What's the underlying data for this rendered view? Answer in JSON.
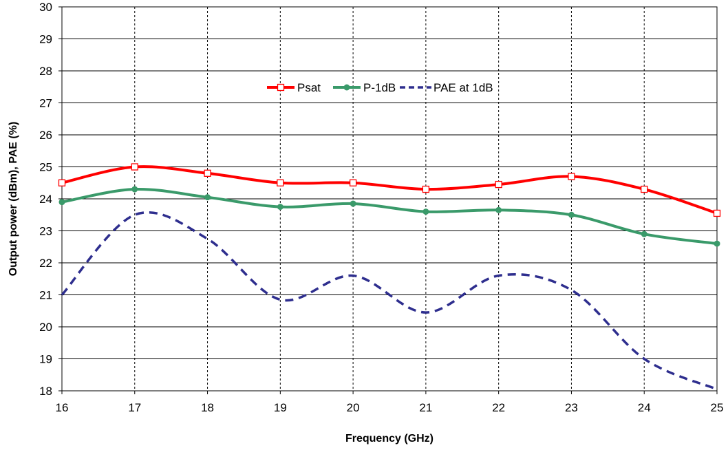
{
  "chart_data": {
    "type": "line",
    "title": "",
    "xlabel": "Frequency (GHz)",
    "ylabel": "Output power (dBm), PAE (%)",
    "x": [
      16,
      17,
      18,
      19,
      20,
      21,
      22,
      23,
      24,
      25
    ],
    "xlim": [
      16,
      25
    ],
    "ylim": [
      18,
      30
    ],
    "xticks": [
      "16",
      "17",
      "18",
      "19",
      "20",
      "21",
      "22",
      "23",
      "24",
      "25"
    ],
    "yticks": [
      "18",
      "19",
      "20",
      "21",
      "22",
      "23",
      "24",
      "25",
      "26",
      "27",
      "28",
      "29",
      "30"
    ],
    "grid": {
      "horizontal": true,
      "vertical": "dashed"
    },
    "legend_position": "top-center",
    "series": [
      {
        "name": "Psat",
        "color": "#ff0000",
        "marker": "open-square",
        "dash": "solid",
        "values": [
          24.5,
          25.0,
          24.8,
          24.5,
          24.5,
          24.3,
          24.45,
          24.7,
          24.3,
          23.55
        ]
      },
      {
        "name": "P-1dB",
        "color": "#3a9a6a",
        "marker": "filled-circle",
        "dash": "solid",
        "values": [
          23.9,
          24.3,
          24.05,
          23.75,
          23.85,
          23.6,
          23.65,
          23.5,
          22.9,
          22.6
        ]
      },
      {
        "name": "PAE at 1dB",
        "color": "#2e2e8e",
        "marker": "none",
        "dash": "dashed",
        "values": [
          21.0,
          23.5,
          22.75,
          20.85,
          21.6,
          20.45,
          21.6,
          21.15,
          19.0,
          18.05
        ]
      }
    ]
  }
}
